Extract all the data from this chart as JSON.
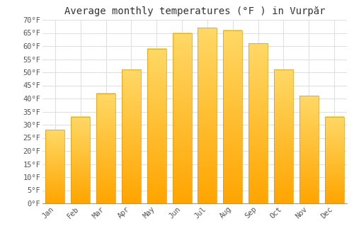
{
  "title": "Average monthly temperatures (°F ) in Vurpăr",
  "months": [
    "Jan",
    "Feb",
    "Mar",
    "Apr",
    "May",
    "Jun",
    "Jul",
    "Aug",
    "Sep",
    "Oct",
    "Nov",
    "Dec"
  ],
  "values": [
    28,
    33,
    42,
    51,
    59,
    65,
    67,
    66,
    61,
    51,
    41,
    33
  ],
  "bar_color_bottom": "#FFA500",
  "bar_color_top": "#FFD966",
  "bar_edge_color": "#E69500",
  "ylim": [
    0,
    70
  ],
  "yticks": [
    0,
    5,
    10,
    15,
    20,
    25,
    30,
    35,
    40,
    45,
    50,
    55,
    60,
    65,
    70
  ],
  "ytick_labels": [
    "0°F",
    "5°F",
    "10°F",
    "15°F",
    "20°F",
    "25°F",
    "30°F",
    "35°F",
    "40°F",
    "45°F",
    "50°F",
    "55°F",
    "60°F",
    "65°F",
    "70°F"
  ],
  "background_color": "#ffffff",
  "grid_color": "#e0e0e0",
  "title_fontsize": 10,
  "tick_fontsize": 7.5,
  "bar_width": 0.75
}
